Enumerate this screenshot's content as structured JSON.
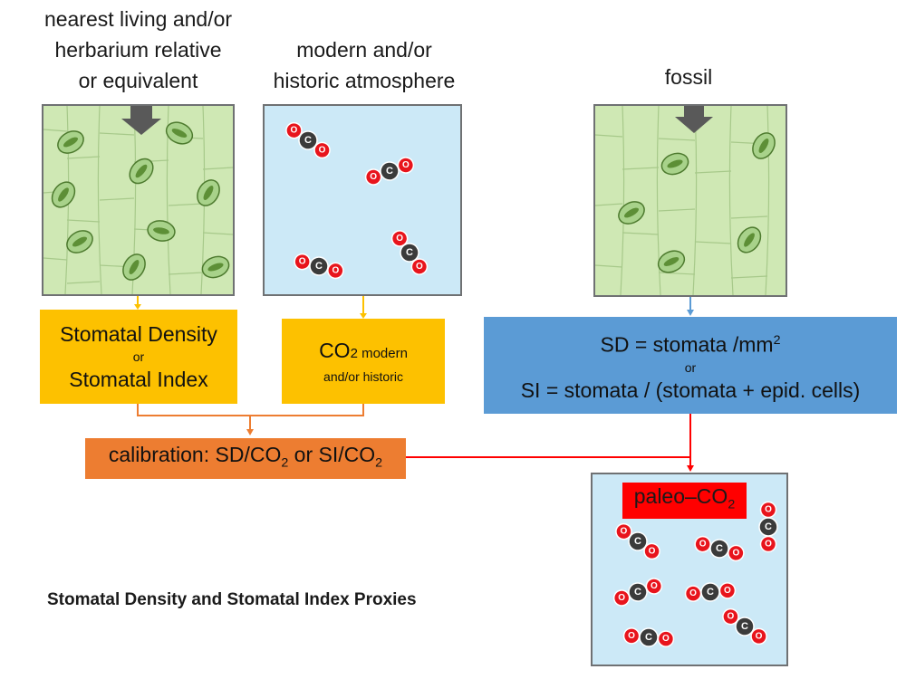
{
  "labels": {
    "living_line1": "nearest living and/or",
    "living_line2": "herbarium relative",
    "living_line3": "or equivalent",
    "atmos_line1": "modern and/or",
    "atmos_line2": "historic atmosphere",
    "fossil": "fossil"
  },
  "density_box": {
    "line1": "Stomatal Density",
    "line2": "or",
    "line3": "Stomatal Index"
  },
  "co2_box": {
    "co": "CO",
    "sub": "2 modern",
    "line2": "and/or historic"
  },
  "formula_box": {
    "sd_text": "SD = stomata /mm",
    "sd_sup": "2",
    "or": "or",
    "si_text": "SI = stomata / (stomata + epid. cells)"
  },
  "calibration": {
    "prefix": "calibration: SD/CO",
    "sub1": "2",
    "middle": " or SI/CO",
    "sub2": "2"
  },
  "paleo": {
    "text": "paleo–CO",
    "sub": "2"
  },
  "molecule": {
    "carbon": "C",
    "oxygen": "O"
  },
  "bottom_title": "Stomatal Density and Stomatal Index Proxies",
  "colors": {
    "yellow": "#fdc100",
    "blue": "#5b9bd5",
    "orange": "#ed7d31",
    "red": "#ff0000",
    "leaf": "#cfe8b4",
    "air": "#cce9f7"
  }
}
